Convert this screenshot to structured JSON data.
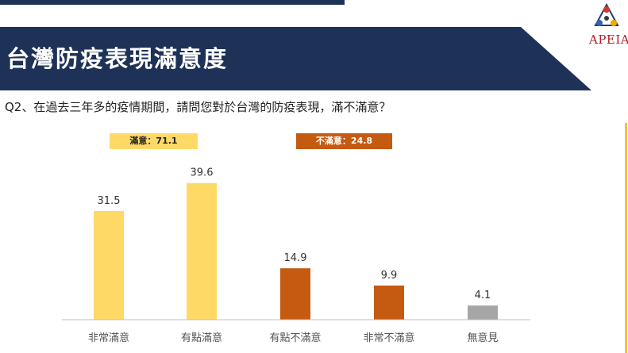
{
  "header": {
    "title": "台灣防疫表現滿意度",
    "logo_text": "APEIA"
  },
  "question": "Q2、在過去三年多的疫情期間，請問您對於台灣的防疫表現，滿不滿意？",
  "summary": {
    "satisfied": "滿意：71.1",
    "dissatisfied": "不滿意：24.8"
  },
  "colors": {
    "banner": "#1e3258",
    "satisfied": "#ffd966",
    "dissatisfied": "#c55a11",
    "no_opinion": "#a6a6a6",
    "accent_line": "#f2c23c"
  },
  "chart_data": {
    "type": "bar",
    "categories": [
      "非常滿意",
      "有點滿意",
      "有點不滿意",
      "非常不滿意",
      "無意見"
    ],
    "values": [
      31.5,
      39.6,
      14.9,
      9.9,
      4.1
    ],
    "value_labels": [
      "31.5",
      "39.6",
      "14.9",
      "9.9",
      "4.1"
    ],
    "bar_colors": [
      "#ffd966",
      "#ffd966",
      "#c55a11",
      "#c55a11",
      "#a6a6a6"
    ],
    "title": "",
    "xlabel": "",
    "ylabel": "",
    "ylim": [
      0,
      45
    ],
    "grid": false,
    "legend": "none"
  }
}
